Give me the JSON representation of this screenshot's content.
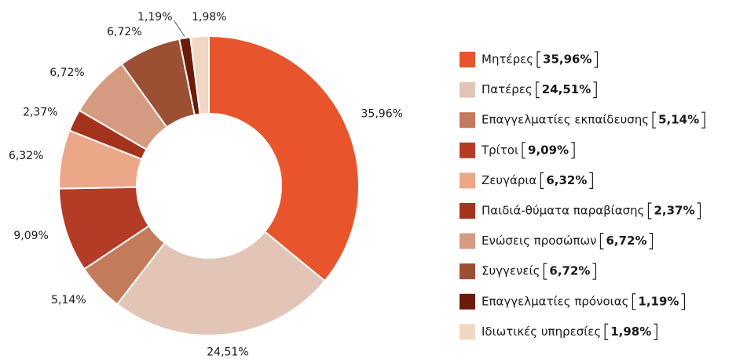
{
  "chart_data": {
    "type": "pie",
    "categories": [
      "Μητέρες",
      "Πατέρες",
      "Επαγγελματίες εκπαίδευσης",
      "Τρίτοι",
      "Ζευγάρια",
      "Παιδιά-θύματα παραβίασης",
      "Ενώσεις προσώπων",
      "Συγγενείς",
      "Επαγγελματίες πρόνοιας",
      "Ιδιωτικές υπηρεσίες"
    ],
    "values": [
      35.96,
      24.51,
      5.14,
      9.09,
      6.32,
      2.37,
      6.72,
      6.72,
      1.19,
      1.98
    ],
    "value_labels": [
      "35,96%",
      "24,51%",
      "5,14%",
      "9,09%",
      "6,32%",
      "2,37%",
      "6,72%",
      "6,72%",
      "1,19%",
      "1,98%"
    ],
    "colors": [
      "#e8552c",
      "#e2c5b7",
      "#c47b5b",
      "#b43b25",
      "#eba788",
      "#a4331c",
      "#d49b81",
      "#9b5034",
      "#6b1b0b",
      "#f0d7c4"
    ],
    "donut": true,
    "legend": "right"
  }
}
